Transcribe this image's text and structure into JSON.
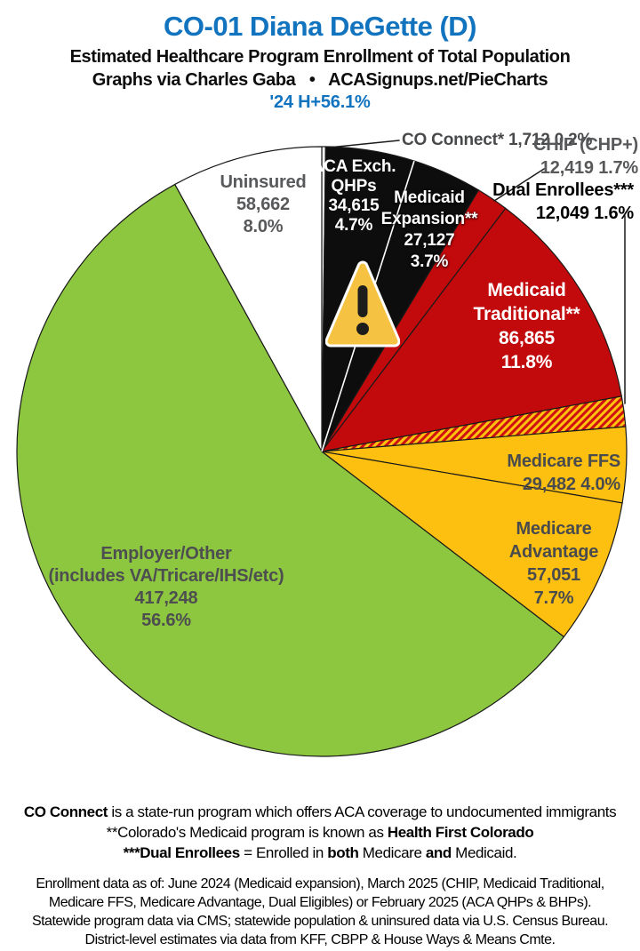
{
  "header": {
    "title": "CO-01 Diana DeGette (D)",
    "subtitle": "Estimated Healthcare Program Enrollment of Total Population",
    "credit": "Graphs via Charles Gaba   •   ACASignups.net/PieCharts",
    "h_index": "'24 H+56.1%"
  },
  "colors": {
    "title_blue": "#1273bf",
    "slice_black": "#0d0d0d",
    "slice_red": "#c2090b",
    "slice_gold": "#fdc010",
    "slice_green": "#8dc63f",
    "slice_white": "#ffffff",
    "hatch_red": "#cf1111",
    "hatch_gold": "#ffc20e",
    "label_gray": "#58595b",
    "warning_yellow": "#f5c242"
  },
  "chart_data": {
    "type": "pie",
    "title": "CO-01 Diana DeGette (D)",
    "subtitle": "Estimated Healthcare Program Enrollment of Total Population",
    "start_angle_deg_from_top": 0,
    "direction": "clockwise",
    "slices": [
      {
        "label": "CO Connect*",
        "value": 1712,
        "pct": 0.2,
        "color": "#ffffff"
      },
      {
        "label": "ACA Exch. QHPs",
        "value": 34615,
        "pct": 4.7,
        "color": "#0d0d0d"
      },
      {
        "label": "Medicaid Expansion**",
        "value": 27127,
        "pct": 3.7,
        "color": "#0d0d0d",
        "start_edge": "#ffffff"
      },
      {
        "label": "CHIP (CHP+)",
        "value": 12419,
        "pct": 1.7,
        "color": "#c2090b"
      },
      {
        "label": "Medicaid Traditional**",
        "value": 86865,
        "pct": 11.8,
        "color": "#c2090b"
      },
      {
        "label": "Dual Enrollees***",
        "value": 12049,
        "pct": 1.6,
        "color": "hatch-medicare-medicaid"
      },
      {
        "label": "Medicare FFS",
        "value": 29482,
        "pct": 4.0,
        "color": "#fdc010"
      },
      {
        "label": "Medicare Advantage",
        "value": 57051,
        "pct": 7.7,
        "color": "#fdc010"
      },
      {
        "label": "Employer/Other (includes VA/Tricare/IHS/etc)",
        "value": 417248,
        "pct": 56.6,
        "color": "#8dc63f"
      },
      {
        "label": "Uninsured",
        "value": 58662,
        "pct": 8.0,
        "color": "#ffffff"
      }
    ]
  },
  "pie_labels": {
    "uninsured": {
      "l1": "Uninsured",
      "l2": "58,662",
      "l3": "8.0%"
    },
    "aca": {
      "l1": "ACA Exch.",
      "l2": "QHPs",
      "l3": "34,615",
      "l4": "4.7%"
    },
    "medicaid_expansion": {
      "l1": "Medicaid",
      "l2": "Expansion**",
      "l3": "27,127",
      "l4": "3.7%"
    },
    "co_connect": {
      "l1": "CO Connect* 1,712 0.2%"
    },
    "chip": {
      "l1": "CHIP (CHP+)",
      "l2": "12,419 1.7%"
    },
    "dual": {
      "l1": "Dual Enrollees***",
      "l2": "12,049 1.6%"
    },
    "medicaid_traditional": {
      "l1": "Medicaid",
      "l2": "Traditional**",
      "l3": "86,865",
      "l4": "11.8%"
    },
    "medicare_ffs": {
      "l1": "Medicare FFS",
      "l2": "29,482 4.0%"
    },
    "medicare_advantage": {
      "l1": "Medicare",
      "l2": "Advantage",
      "l3": "57,051",
      "l4": "7.7%"
    },
    "employer": {
      "l1": "Employer/Other",
      "l2": "(includes VA/Tricare/IHS/etc)",
      "l3": "417,248",
      "l4": "56.6%"
    }
  },
  "footer": {
    "notes": [
      [
        {
          "t": "CO Connect",
          "b": true
        },
        {
          "t": " is a state-run program which offers ACA coverage to undocumented immigrants",
          "b": false
        }
      ],
      [
        {
          "t": "**Colorado's Medicaid program is known as ",
          "b": false
        },
        {
          "t": "Health First Colorado",
          "b": true
        }
      ],
      [
        {
          "t": "***Dual Enrollees",
          "b": true
        },
        {
          "t": " = Enrolled in ",
          "b": false
        },
        {
          "t": "both",
          "b": true
        },
        {
          "t": " Medicare ",
          "b": false
        },
        {
          "t": "and",
          "b": true
        },
        {
          "t": " Medicaid.",
          "b": false
        }
      ]
    ],
    "sources": [
      "Enrollment data as of: June 2024 (Medicaid expansion), March 2025 (CHIP, Medicaid Traditional,",
      "Medicare FFS, Medicare Advantage, Dual Eligibles) or February 2025 (ACA QHPs & BHPs).",
      "Statewide program data via CMS; statewide population & uninsured data via U.S. Census Bureau.",
      "District-level estimates via data from KFF, CBPP & House Ways & Means Cmte."
    ]
  }
}
